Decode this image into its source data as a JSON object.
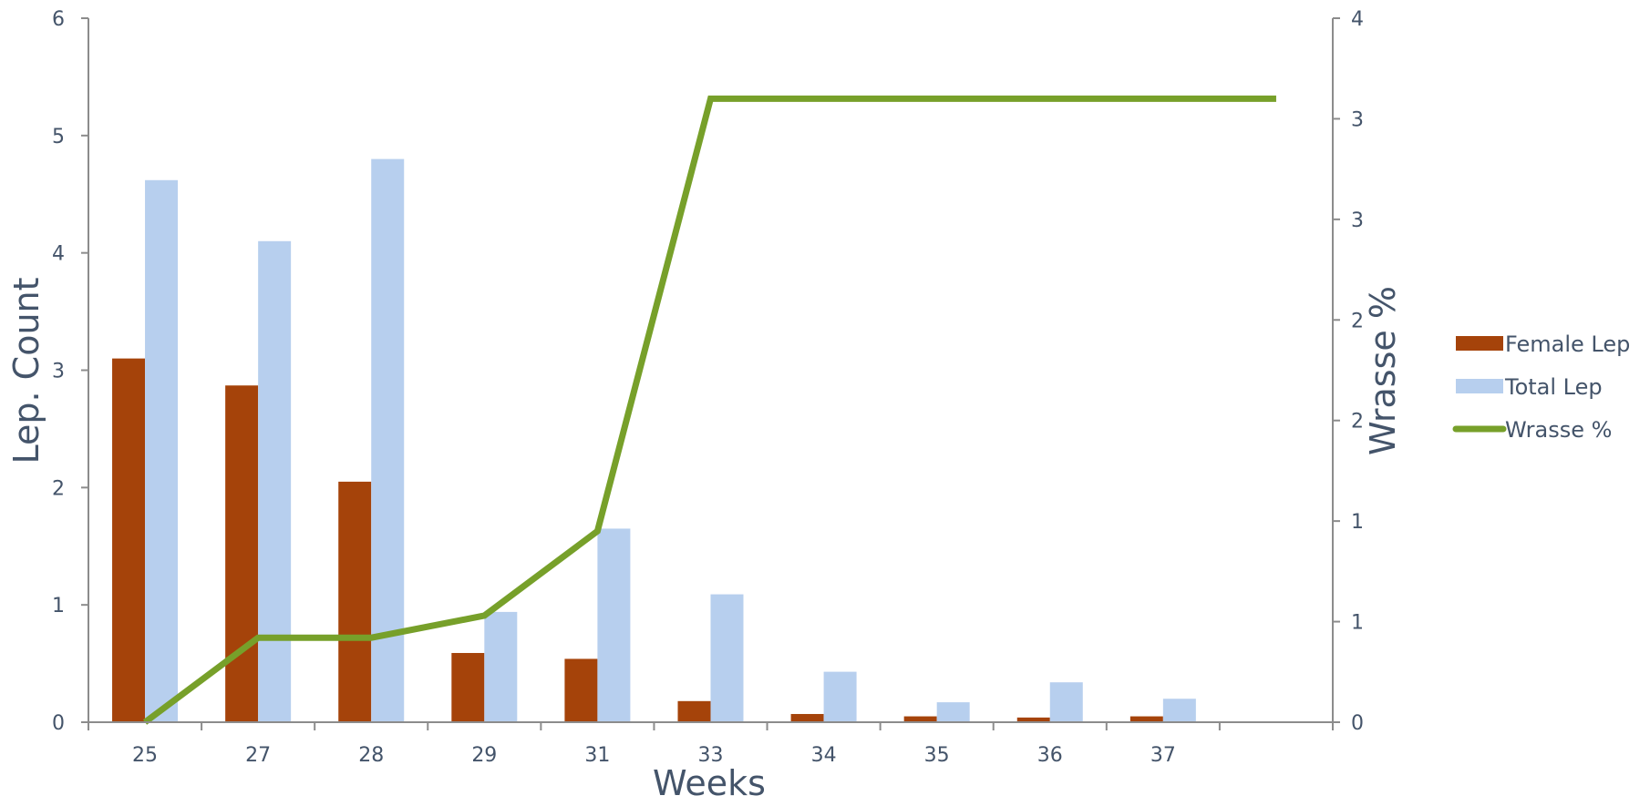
{
  "chart_data": {
    "type": "bar",
    "categories": [
      "25",
      "27",
      "28",
      "29",
      "31",
      "33",
      "34",
      "35",
      "36",
      "37",
      ""
    ],
    "xlabel": "Weeks",
    "ylabel": "Lep. Count",
    "y2label": "Wrasse %",
    "ylim": [
      0,
      6
    ],
    "yticks": [
      "0",
      "1",
      "2",
      "3",
      "4",
      "5",
      "6"
    ],
    "y2lim": [
      0,
      3.5
    ],
    "y2ticks": [
      "0",
      "1",
      "1",
      "2",
      "2",
      "3",
      "3",
      "4"
    ],
    "legend_position": "right",
    "series": [
      {
        "name": "Female Lep",
        "type": "bar",
        "color": "#a5430a",
        "values": [
          3.1,
          2.87,
          2.05,
          0.59,
          0.54,
          0.18,
          0.07,
          0.05,
          0.04,
          0.05,
          null
        ]
      },
      {
        "name": "Total Lep",
        "type": "bar",
        "color": "#b7cfee",
        "values": [
          4.62,
          4.1,
          4.8,
          0.94,
          1.65,
          1.09,
          0.43,
          0.17,
          0.34,
          0.2,
          null
        ]
      },
      {
        "name": "Wrasse %",
        "type": "line",
        "axis": "secondary",
        "color": "#77a02a",
        "values": [
          0,
          0.42,
          0.42,
          0.53,
          0.95,
          3.1,
          3.1,
          3.1,
          3.1,
          3.1,
          3.1
        ]
      }
    ]
  }
}
